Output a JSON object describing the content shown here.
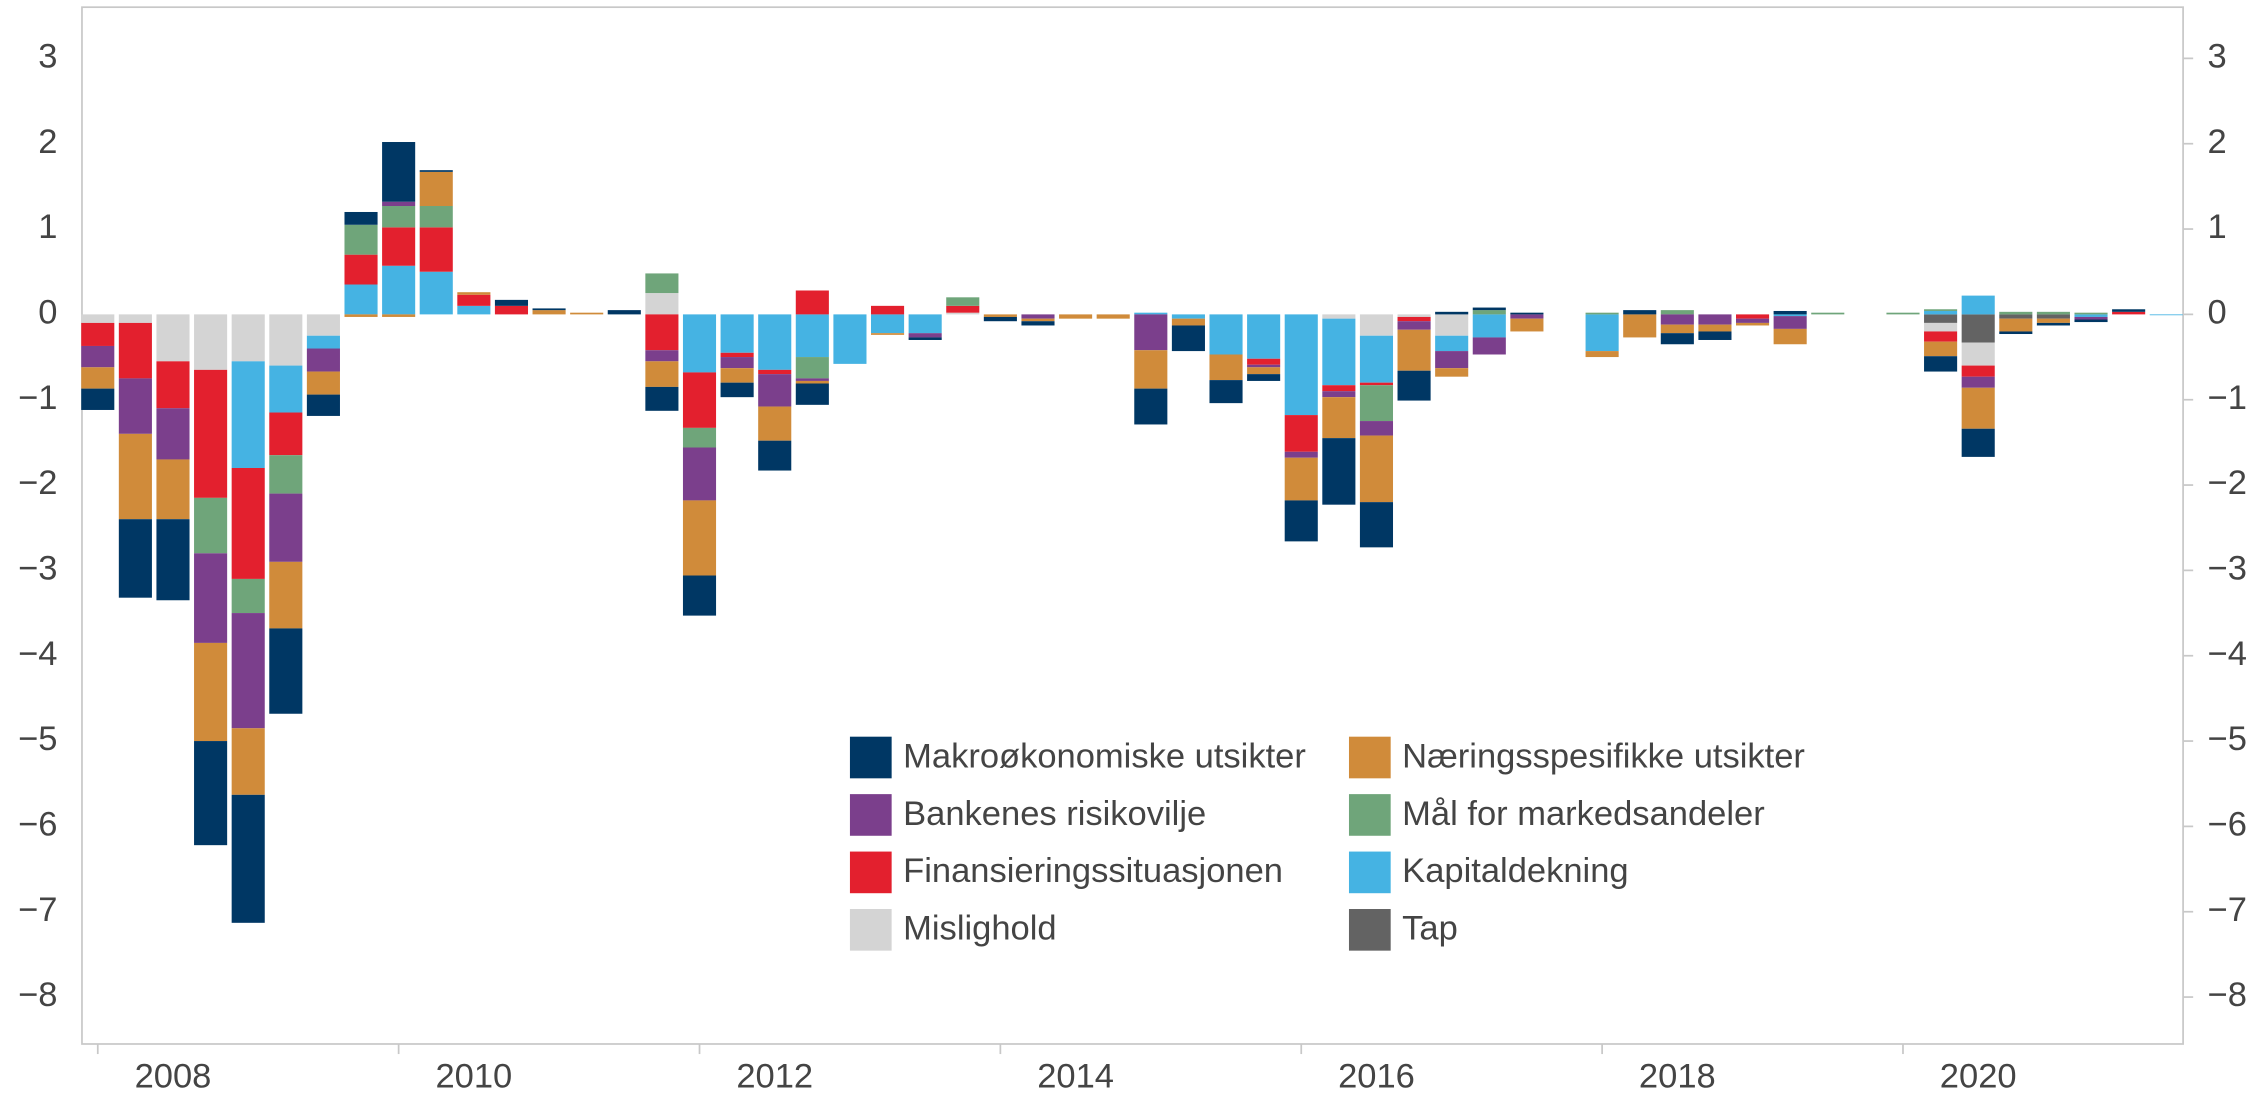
{
  "chart_data": {
    "type": "bar",
    "stacked": true,
    "x": [
      2008,
      2008.25,
      2008.5,
      2008.75,
      2009,
      2009.25,
      2009.5,
      2009.75,
      2010,
      2010.25,
      2010.5,
      2010.75,
      2011,
      2011.25,
      2011.5,
      2011.75,
      2012,
      2012.25,
      2012.5,
      2012.75,
      2013,
      2013.25,
      2013.5,
      2013.75,
      2014,
      2014.25,
      2014.5,
      2014.75,
      2015,
      2015.25,
      2015.5,
      2015.75,
      2016,
      2016.25,
      2016.5,
      2016.75,
      2017,
      2017.25,
      2017.5,
      2017.75,
      2018,
      2018.25,
      2018.5,
      2018.75,
      2019,
      2019.25,
      2019.5,
      2019.75,
      2020,
      2020.25,
      2020.5,
      2020.75,
      2021,
      2021.25,
      2021.5,
      2021.75
    ],
    "xlim": [
      2007.895,
      2021.862
    ],
    "xticks": [
      2008,
      2010,
      2012,
      2014,
      2016,
      2018,
      2020
    ],
    "ylim": [
      -8.55,
      3.6
    ],
    "yticks": [
      {
        "value": -8,
        "label": "−8"
      },
      {
        "value": -7,
        "label": "−7"
      },
      {
        "value": -6,
        "label": "−6"
      },
      {
        "value": -5,
        "label": "−5"
      },
      {
        "value": -4,
        "label": "−4"
      },
      {
        "value": -3,
        "label": "−3"
      },
      {
        "value": -2,
        "label": "−2"
      },
      {
        "value": -1,
        "label": "−1"
      },
      0,
      1,
      2,
      3
    ],
    "series": [
      {
        "name": "Makroøkonomiske utsikter",
        "color": "#003764",
        "values": [
          -0.25,
          -0.92,
          -0.95,
          -1.22,
          -1.5,
          -1.0,
          -0.25,
          0.15,
          0.7,
          0.02,
          0,
          0.07,
          0.02,
          0,
          0.05,
          -0.28,
          -0.47,
          -0.17,
          -0.35,
          -0.25,
          0,
          0,
          -0.03,
          0,
          -0.05,
          -0.05,
          0,
          0,
          -0.42,
          -0.3,
          -0.27,
          -0.08,
          -0.48,
          -0.78,
          -0.53,
          -0.35,
          0.03,
          0.03,
          0.02,
          0,
          0,
          0.05,
          -0.13,
          -0.1,
          0,
          0.04,
          0,
          0,
          0,
          -0.18,
          -0.33,
          -0.03,
          -0.03,
          -0.03,
          0.03,
          0
        ]
      },
      {
        "name": "Næringsspesifikke utsikter",
        "color": "#d08b3a",
        "values": [
          -0.25,
          -1.0,
          -0.7,
          -1.15,
          -0.78,
          -0.78,
          -0.27,
          -0.03,
          -0.03,
          0.4,
          0.03,
          0,
          0.05,
          0.02,
          0,
          -0.3,
          -0.88,
          -0.17,
          -0.4,
          -0.03,
          0,
          -0.02,
          0,
          0,
          -0.03,
          -0.03,
          -0.05,
          -0.05,
          -0.45,
          -0.08,
          -0.3,
          -0.08,
          -0.5,
          -0.48,
          -0.78,
          -0.48,
          -0.1,
          0,
          -0.15,
          0,
          -0.07,
          -0.27,
          -0.1,
          -0.08,
          -0.03,
          -0.18,
          0,
          0,
          0,
          -0.17,
          -0.48,
          -0.15,
          -0.05,
          0,
          0,
          0
        ]
      },
      {
        "name": "Bankenes risikovilje",
        "color": "#7b3f8c",
        "values": [
          -0.25,
          -0.65,
          -0.6,
          -1.05,
          -1.35,
          -0.8,
          -0.27,
          0,
          0.05,
          0,
          0,
          0,
          0,
          0,
          0,
          -0.13,
          -0.62,
          -0.13,
          -0.38,
          -0.03,
          0,
          0,
          -0.05,
          0,
          0,
          -0.05,
          0,
          0,
          -0.42,
          0,
          0,
          -0.03,
          -0.07,
          -0.07,
          -0.17,
          -0.1,
          -0.2,
          -0.2,
          -0.05,
          0,
          0,
          0,
          -0.12,
          -0.12,
          -0.05,
          -0.15,
          0,
          0,
          0,
          0,
          -0.13,
          0,
          0,
          -0.03,
          0,
          0
        ]
      },
      {
        "name": "Mål for markedsandeler",
        "color": "#6fa57a",
        "values": [
          0,
          0,
          0,
          -0.65,
          -0.4,
          -0.45,
          0,
          0.35,
          0.25,
          0.25,
          0,
          0,
          0,
          0,
          0,
          0.23,
          -0.23,
          0,
          0,
          -0.25,
          0,
          0,
          0,
          0.1,
          0,
          0,
          0,
          0,
          0,
          0,
          0,
          0,
          0,
          0,
          -0.42,
          0,
          0,
          0.05,
          0,
          0,
          0.02,
          0,
          0.05,
          0,
          0,
          0,
          0.02,
          0,
          0.02,
          0.02,
          0,
          0.03,
          0.03,
          0.02,
          0,
          0
        ]
      },
      {
        "name": "Finansieringssituasjonen",
        "color": "#e3202e",
        "values": [
          -0.27,
          -0.65,
          -0.55,
          -1.5,
          -1.3,
          -0.5,
          0,
          0.35,
          0.45,
          0.52,
          0.13,
          0.1,
          0,
          0,
          0,
          -0.42,
          -0.65,
          -0.05,
          -0.05,
          0.28,
          0,
          0.1,
          0,
          0.08,
          0,
          0,
          0,
          0,
          0,
          0,
          0,
          -0.07,
          -0.43,
          -0.07,
          -0.03,
          -0.05,
          0,
          0,
          0,
          0,
          0,
          0,
          0,
          0,
          -0.05,
          0,
          0,
          0,
          0,
          -0.12,
          -0.13,
          0,
          0,
          0,
          0.03,
          0
        ]
      },
      {
        "name": "Kapitaldekning",
        "color": "#45b3e3",
        "values": [
          0,
          0,
          0,
          0,
          -1.25,
          -0.55,
          -0.15,
          0.35,
          0.57,
          0.5,
          0.1,
          0,
          0,
          0,
          0,
          0,
          -0.68,
          -0.45,
          -0.65,
          -0.5,
          -0.58,
          -0.22,
          -0.22,
          0,
          0,
          0,
          0,
          0,
          0.02,
          -0.05,
          -0.47,
          -0.52,
          -1.18,
          -0.78,
          -0.55,
          0,
          -0.18,
          -0.27,
          0,
          0,
          -0.43,
          0,
          0,
          0,
          0,
          -0.02,
          0,
          0,
          0,
          0.04,
          0.22,
          0,
          0,
          -0.03,
          0,
          -0.01
        ]
      },
      {
        "name": "Mislighold",
        "color": "#d4d4d4",
        "values": [
          -0.1,
          -0.1,
          -0.55,
          -0.65,
          -0.55,
          -0.6,
          -0.25,
          0,
          0,
          0,
          0,
          0,
          0,
          0,
          0,
          0.25,
          0,
          0,
          0,
          0,
          0,
          0,
          0,
          0.02,
          0,
          0,
          0,
          0,
          0,
          0,
          0,
          0,
          0,
          -0.05,
          -0.25,
          -0.03,
          -0.25,
          0,
          0,
          0,
          0,
          0,
          0,
          0,
          0,
          0,
          0,
          0,
          0,
          -0.1,
          -0.27,
          0,
          0,
          0,
          0,
          0
        ]
      },
      {
        "name": "Tap",
        "color": "#636363",
        "values": [
          0,
          0,
          0,
          0,
          0,
          0,
          0,
          0,
          0,
          0,
          0,
          0,
          0,
          0,
          0,
          0,
          0,
          0,
          0,
          0,
          0,
          0,
          0,
          0,
          0,
          0,
          0,
          0,
          0,
          0,
          0,
          0,
          0,
          0,
          0,
          0,
          0,
          0,
          0,
          0,
          0,
          0,
          0,
          0,
          0,
          0,
          0,
          0,
          0,
          -0.1,
          -0.33,
          -0.05,
          -0.05,
          0,
          0,
          0
        ]
      }
    ]
  }
}
